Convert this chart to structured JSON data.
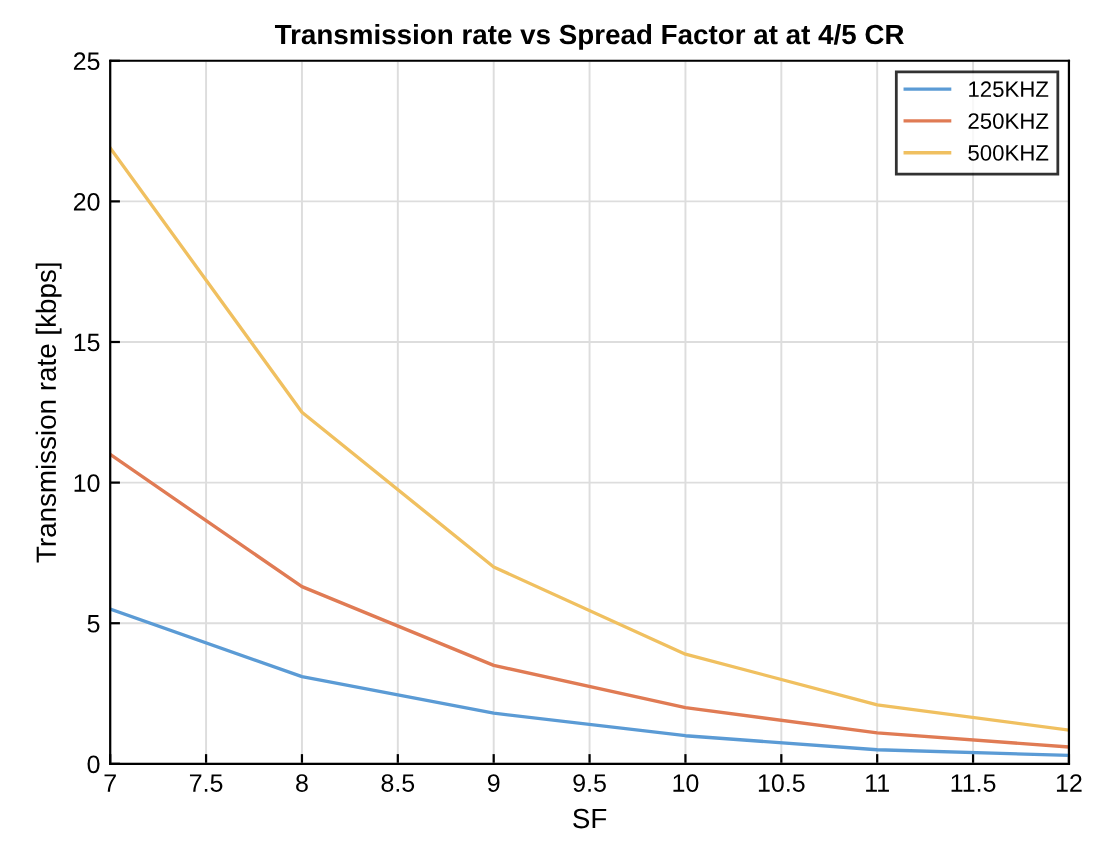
{
  "chart_data": {
    "type": "line",
    "title": "Transmission rate vs Spread Factor at at 4/5 CR",
    "xlabel": "SF",
    "ylabel": "Transmission rate [kbps]",
    "x": [
      7,
      8,
      9,
      10,
      11,
      12
    ],
    "series": [
      {
        "name": "125KHZ",
        "color": "#5b9bd5",
        "values": [
          5.5,
          3.1,
          1.8,
          1.0,
          0.5,
          0.3
        ]
      },
      {
        "name": "250KHZ",
        "color": "#e07b54",
        "values": [
          11.0,
          6.3,
          3.5,
          2.0,
          1.1,
          0.6
        ]
      },
      {
        "name": "500KHZ",
        "color": "#f0c060",
        "values": [
          21.9,
          12.5,
          7.0,
          3.9,
          2.1,
          1.2
        ]
      }
    ],
    "xlim": [
      7,
      12
    ],
    "ylim": [
      0,
      25
    ],
    "xticks": [
      7,
      7.5,
      8,
      8.5,
      9,
      9.5,
      10,
      10.5,
      11,
      11.5,
      12
    ],
    "yticks": [
      0,
      5,
      10,
      15,
      20,
      25
    ],
    "grid": true,
    "legend": "top right"
  }
}
